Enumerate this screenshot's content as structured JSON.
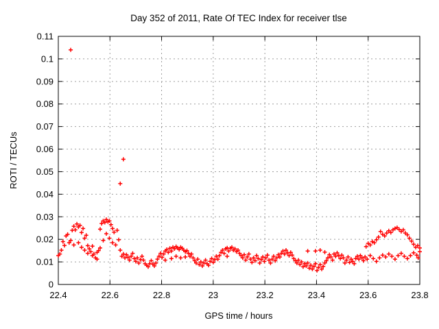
{
  "window": {
    "background": "#ffffff"
  },
  "chart_data": {
    "type": "scatter",
    "title": "Day 352 of 2011, Rate Of TEC Index for receiver tlse",
    "xlabel": "GPS time / hours",
    "ylabel": "ROTI / TECUs",
    "xlim": [
      22.4,
      23.8
    ],
    "ylim": [
      0,
      0.11
    ],
    "grid": true,
    "legend": "none",
    "marker": "plus",
    "colors": {
      "marker": "#ff0000",
      "grid": "#9c9c9c",
      "axis": "#000000",
      "text": "#000000",
      "background": "#ffffff"
    },
    "x_tick_values": [
      22.4,
      22.6,
      22.8,
      23.0,
      23.2,
      23.4,
      23.6,
      23.8
    ],
    "x_tick_labels": [
      "22.4",
      "22.6",
      "22.8",
      "23",
      "23.2",
      "23.4",
      "23.6",
      "23.8"
    ],
    "y_tick_values": [
      0,
      0.01,
      0.02,
      0.03,
      0.04,
      0.05,
      0.06,
      0.07,
      0.08,
      0.09,
      0.1,
      0.11
    ],
    "y_tick_labels": [
      "0",
      "0.01",
      "0.02",
      "0.03",
      "0.04",
      "0.05",
      "0.06",
      "0.07",
      "0.08",
      "0.09",
      "0.1",
      "0.11"
    ],
    "outliers": [
      [
        22.448,
        0.104
      ],
      [
        22.652,
        0.0555
      ],
      [
        22.64,
        0.0447
      ]
    ],
    "points": [
      [
        22.4,
        0.0128
      ],
      [
        22.406,
        0.0135
      ],
      [
        22.412,
        0.0152
      ],
      [
        22.418,
        0.019
      ],
      [
        22.424,
        0.0173
      ],
      [
        22.43,
        0.0215
      ],
      [
        22.436,
        0.0222
      ],
      [
        22.442,
        0.0185
      ],
      [
        22.448,
        0.0195
      ],
      [
        22.448,
        0.104
      ],
      [
        22.454,
        0.024
      ],
      [
        22.46,
        0.0258
      ],
      [
        22.46,
        0.0175
      ],
      [
        22.466,
        0.0242
      ],
      [
        22.472,
        0.0268
      ],
      [
        22.478,
        0.0255
      ],
      [
        22.478,
        0.0185
      ],
      [
        22.484,
        0.0262
      ],
      [
        22.49,
        0.023
      ],
      [
        22.49,
        0.0165
      ],
      [
        22.496,
        0.0248
      ],
      [
        22.502,
        0.0205
      ],
      [
        22.502,
        0.0152
      ],
      [
        22.508,
        0.0218
      ],
      [
        22.514,
        0.0172
      ],
      [
        22.514,
        0.0138
      ],
      [
        22.52,
        0.0158
      ],
      [
        22.526,
        0.0145
      ],
      [
        22.532,
        0.0128
      ],
      [
        22.532,
        0.017
      ],
      [
        22.538,
        0.0135
      ],
      [
        22.544,
        0.0118
      ],
      [
        22.55,
        0.0142
      ],
      [
        22.55,
        0.0112
      ],
      [
        22.556,
        0.015
      ],
      [
        22.562,
        0.0245
      ],
      [
        22.562,
        0.0162
      ],
      [
        22.568,
        0.027
      ],
      [
        22.574,
        0.0282
      ],
      [
        22.574,
        0.0195
      ],
      [
        22.58,
        0.0275
      ],
      [
        22.586,
        0.0288
      ],
      [
        22.586,
        0.0225
      ],
      [
        22.592,
        0.0278
      ],
      [
        22.598,
        0.0282
      ],
      [
        22.598,
        0.0205
      ],
      [
        22.604,
        0.0265
      ],
      [
        22.61,
        0.0248
      ],
      [
        22.61,
        0.0185
      ],
      [
        22.616,
        0.0232
      ],
      [
        22.622,
        0.0175
      ],
      [
        22.628,
        0.024
      ],
      [
        22.634,
        0.0198
      ],
      [
        22.64,
        0.0447
      ],
      [
        22.64,
        0.0152
      ],
      [
        22.646,
        0.0125
      ],
      [
        22.652,
        0.0555
      ],
      [
        22.652,
        0.0135
      ],
      [
        22.658,
        0.0118
      ],
      [
        22.664,
        0.0132
      ],
      [
        22.67,
        0.012
      ],
      [
        22.676,
        0.0108
      ],
      [
        22.682,
        0.0125
      ],
      [
        22.688,
        0.0138
      ],
      [
        22.694,
        0.0115
      ],
      [
        22.7,
        0.0102
      ],
      [
        22.706,
        0.0118
      ],
      [
        22.712,
        0.0095
      ],
      [
        22.718,
        0.011
      ],
      [
        22.724,
        0.0125
      ],
      [
        22.73,
        0.0108
      ],
      [
        22.736,
        0.0092
      ],
      [
        22.742,
        0.0085
      ],
      [
        22.748,
        0.0078
      ],
      [
        22.754,
        0.0092
      ],
      [
        22.76,
        0.0105
      ],
      [
        22.766,
        0.009
      ],
      [
        22.772,
        0.0082
      ],
      [
        22.778,
        0.0095
      ],
      [
        22.784,
        0.0112
      ],
      [
        22.79,
        0.0125
      ],
      [
        22.796,
        0.0138
      ],
      [
        22.802,
        0.012
      ],
      [
        22.808,
        0.0135
      ],
      [
        22.814,
        0.0148
      ],
      [
        22.814,
        0.0108
      ],
      [
        22.82,
        0.0155
      ],
      [
        22.826,
        0.0142
      ],
      [
        22.832,
        0.016
      ],
      [
        22.838,
        0.0148
      ],
      [
        22.838,
        0.0115
      ],
      [
        22.844,
        0.0165
      ],
      [
        22.85,
        0.0158
      ],
      [
        22.856,
        0.0168
      ],
      [
        22.856,
        0.0125
      ],
      [
        22.862,
        0.0162
      ],
      [
        22.868,
        0.0155
      ],
      [
        22.874,
        0.0165
      ],
      [
        22.874,
        0.0118
      ],
      [
        22.88,
        0.016
      ],
      [
        22.886,
        0.0152
      ],
      [
        22.892,
        0.0145
      ],
      [
        22.892,
        0.0122
      ],
      [
        22.898,
        0.015
      ],
      [
        22.904,
        0.0138
      ],
      [
        22.91,
        0.0125
      ],
      [
        22.916,
        0.0135
      ],
      [
        22.922,
        0.0118
      ],
      [
        22.928,
        0.0105
      ],
      [
        22.934,
        0.0095
      ],
      [
        22.94,
        0.0112
      ],
      [
        22.946,
        0.0088
      ],
      [
        22.952,
        0.01
      ],
      [
        22.958,
        0.0082
      ],
      [
        22.964,
        0.0095
      ],
      [
        22.97,
        0.0108
      ],
      [
        22.976,
        0.0092
      ],
      [
        22.982,
        0.0085
      ],
      [
        22.988,
        0.0102
      ],
      [
        22.994,
        0.0115
      ],
      [
        23.0,
        0.0098
      ],
      [
        23.006,
        0.011
      ],
      [
        23.012,
        0.0125
      ],
      [
        23.018,
        0.0112
      ],
      [
        23.024,
        0.0128
      ],
      [
        23.03,
        0.0142
      ],
      [
        23.036,
        0.0152
      ],
      [
        23.042,
        0.0138
      ],
      [
        23.048,
        0.0158
      ],
      [
        23.054,
        0.0162
      ],
      [
        23.054,
        0.0125
      ],
      [
        23.06,
        0.0148
      ],
      [
        23.066,
        0.016
      ],
      [
        23.072,
        0.0165
      ],
      [
        23.078,
        0.0152
      ],
      [
        23.084,
        0.0158
      ],
      [
        23.09,
        0.0145
      ],
      [
        23.096,
        0.0152
      ],
      [
        23.102,
        0.0138
      ],
      [
        23.108,
        0.0128
      ],
      [
        23.114,
        0.0118
      ],
      [
        23.12,
        0.0132
      ],
      [
        23.126,
        0.0108
      ],
      [
        23.132,
        0.0122
      ],
      [
        23.138,
        0.0135
      ],
      [
        23.144,
        0.0112
      ],
      [
        23.15,
        0.0098
      ],
      [
        23.156,
        0.0118
      ],
      [
        23.162,
        0.0105
      ],
      [
        23.168,
        0.0128
      ],
      [
        23.174,
        0.0115
      ],
      [
        23.18,
        0.0095
      ],
      [
        23.186,
        0.011
      ],
      [
        23.192,
        0.0122
      ],
      [
        23.198,
        0.0102
      ],
      [
        23.204,
        0.0118
      ],
      [
        23.21,
        0.013
      ],
      [
        23.216,
        0.0108
      ],
      [
        23.222,
        0.0095
      ],
      [
        23.228,
        0.0112
      ],
      [
        23.234,
        0.0125
      ],
      [
        23.24,
        0.0105
      ],
      [
        23.246,
        0.0118
      ],
      [
        23.252,
        0.0132
      ],
      [
        23.258,
        0.0122
      ],
      [
        23.264,
        0.0138
      ],
      [
        23.27,
        0.0148
      ],
      [
        23.276,
        0.0135
      ],
      [
        23.282,
        0.0152
      ],
      [
        23.288,
        0.014
      ],
      [
        23.294,
        0.0128
      ],
      [
        23.3,
        0.0142
      ],
      [
        23.306,
        0.013
      ],
      [
        23.312,
        0.0115
      ],
      [
        23.318,
        0.0105
      ],
      [
        23.324,
        0.0095
      ],
      [
        23.33,
        0.0108
      ],
      [
        23.336,
        0.0088
      ],
      [
        23.342,
        0.01
      ],
      [
        23.348,
        0.0078
      ],
      [
        23.354,
        0.0092
      ],
      [
        23.36,
        0.0082
      ],
      [
        23.366,
        0.0148
      ],
      [
        23.366,
        0.0095
      ],
      [
        23.372,
        0.0072
      ],
      [
        23.378,
        0.0085
      ],
      [
        23.384,
        0.0068
      ],
      [
        23.39,
        0.008
      ],
      [
        23.396,
        0.0148
      ],
      [
        23.396,
        0.0092
      ],
      [
        23.402,
        0.0062
      ],
      [
        23.408,
        0.0075
      ],
      [
        23.414,
        0.0152
      ],
      [
        23.414,
        0.0088
      ],
      [
        23.42,
        0.0068
      ],
      [
        23.426,
        0.008
      ],
      [
        23.432,
        0.0143
      ],
      [
        23.432,
        0.0095
      ],
      [
        23.438,
        0.0105
      ],
      [
        23.444,
        0.0118
      ],
      [
        23.45,
        0.0132
      ],
      [
        23.456,
        0.0122
      ],
      [
        23.462,
        0.0108
      ],
      [
        23.468,
        0.0135
      ],
      [
        23.474,
        0.0125
      ],
      [
        23.48,
        0.014
      ],
      [
        23.486,
        0.0128
      ],
      [
        23.492,
        0.0115
      ],
      [
        23.498,
        0.013
      ],
      [
        23.504,
        0.0118
      ],
      [
        23.51,
        0.0095
      ],
      [
        23.516,
        0.0108
      ],
      [
        23.522,
        0.0122
      ],
      [
        23.528,
        0.0098
      ],
      [
        23.534,
        0.0112
      ],
      [
        23.54,
        0.0102
      ],
      [
        23.546,
        0.0092
      ],
      [
        23.552,
        0.0115
      ],
      [
        23.558,
        0.0125
      ],
      [
        23.564,
        0.0112
      ],
      [
        23.57,
        0.0128
      ],
      [
        23.576,
        0.0118
      ],
      [
        23.582,
        0.0105
      ],
      [
        23.588,
        0.0122
      ],
      [
        23.596,
        0.0112
      ],
      [
        23.608,
        0.0128
      ],
      [
        23.62,
        0.0115
      ],
      [
        23.632,
        0.0102
      ],
      [
        23.644,
        0.0118
      ],
      [
        23.656,
        0.013
      ],
      [
        23.668,
        0.0122
      ],
      [
        23.68,
        0.0135
      ],
      [
        23.692,
        0.0125
      ],
      [
        23.704,
        0.0112
      ],
      [
        23.716,
        0.0128
      ],
      [
        23.728,
        0.0138
      ],
      [
        23.74,
        0.0125
      ],
      [
        23.752,
        0.0115
      ],
      [
        23.764,
        0.0128
      ],
      [
        23.776,
        0.014
      ],
      [
        23.788,
        0.013
      ],
      [
        23.794,
        0.0118
      ],
      [
        23.8,
        0.0145
      ],
      [
        23.592,
        0.0168
      ],
      [
        23.6,
        0.0182
      ],
      [
        23.608,
        0.0175
      ],
      [
        23.616,
        0.019
      ],
      [
        23.624,
        0.0185
      ],
      [
        23.632,
        0.0198
      ],
      [
        23.64,
        0.021
      ],
      [
        23.648,
        0.0235
      ],
      [
        23.656,
        0.0222
      ],
      [
        23.664,
        0.0215
      ],
      [
        23.672,
        0.0228
      ],
      [
        23.68,
        0.0238
      ],
      [
        23.688,
        0.023
      ],
      [
        23.696,
        0.0242
      ],
      [
        23.704,
        0.0248
      ],
      [
        23.712,
        0.0252
      ],
      [
        23.72,
        0.0244
      ],
      [
        23.728,
        0.0235
      ],
      [
        23.736,
        0.0242
      ],
      [
        23.744,
        0.0228
      ],
      [
        23.752,
        0.022
      ],
      [
        23.76,
        0.0205
      ],
      [
        23.768,
        0.0192
      ],
      [
        23.776,
        0.0178
      ],
      [
        23.784,
        0.0165
      ],
      [
        23.792,
        0.0172
      ],
      [
        23.8,
        0.0162
      ]
    ]
  }
}
